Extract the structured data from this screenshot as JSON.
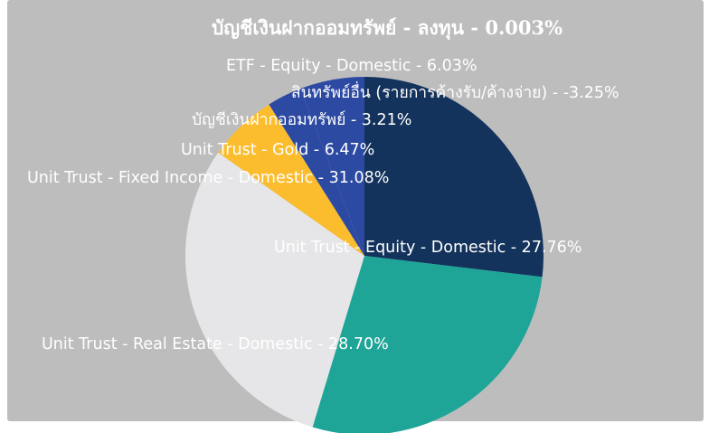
{
  "chart_data": {
    "type": "pie",
    "title": "บัญชีเงินฝากออมทรัพย์ - ลงทุน - 0.003%",
    "start_at": "12 o'clock",
    "direction": "clockwise",
    "slices": [
      {
        "name": "Unit Trust - Equity - Domestic",
        "value": 27.76,
        "label": "Unit Trust - Equity - Domestic - 27.76%",
        "color": "#14335c"
      },
      {
        "name": "Unit Trust - Real Estate - Domestic",
        "value": 28.7,
        "label": "Unit Trust - Real Estate - Domestic - 28.70%",
        "color": "#1ea597"
      },
      {
        "name": "Unit Trust - Fixed Income - Domestic",
        "value": 31.08,
        "label": "Unit Trust - Fixed Income - Domestic - 31.08%",
        "color": "#e6e6e8"
      },
      {
        "name": "Unit Trust - Gold",
        "value": 6.47,
        "label": "Unit Trust - Gold - 6.47%",
        "color": "#fbbd2e"
      },
      {
        "name": "บัญชีเงินฝากออมทรัพย์",
        "value": 3.21,
        "label": "บัญชีเงินฝากออมทรัพย์ - 3.21%",
        "color": "#2d4aa3"
      },
      {
        "name": "ETF - Equity - Domestic",
        "value": 6.03,
        "label": "ETF - Equity - Domestic - 6.03%",
        "color": "#2d4aa3"
      },
      {
        "name": "สินทรัพย์อื่น (รายการค้างรับ/ค้างจ่าย)",
        "value": -3.25,
        "label": "สินทรัพย์อื่น (รายการค้างรับ/ค้างจ่าย) - -3.25%",
        "color": "#2d4aa3"
      }
    ],
    "legend": "none"
  },
  "colors": {
    "background": "#bdbdbd",
    "label_text": "#ffffff"
  }
}
